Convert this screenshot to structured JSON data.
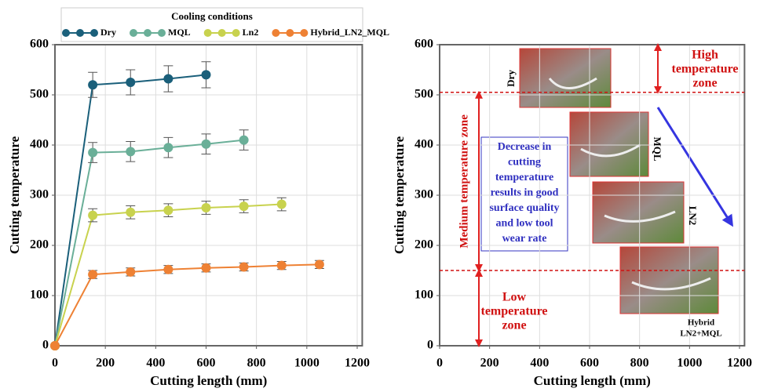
{
  "chart_data": [
    {
      "type": "line",
      "xlabel": "Cutting length (mm)",
      "ylabel": "Cutting temperature",
      "legend_title": "Cooling conditions",
      "xlim": [
        0,
        1220
      ],
      "ylim": [
        0,
        600
      ],
      "xticks": [
        0,
        200,
        400,
        600,
        800,
        1000,
        1200
      ],
      "yticks": [
        0,
        100,
        200,
        300,
        400,
        500,
        600
      ],
      "grid": true,
      "series": [
        {
          "name": "Dry",
          "color": "#1a5f7a",
          "x": [
            0,
            150,
            300,
            450,
            600
          ],
          "values": [
            0,
            520,
            525,
            532,
            540
          ],
          "errors": [
            null,
            25,
            25,
            26,
            26
          ]
        },
        {
          "name": "MQL",
          "color": "#6aaf98",
          "x": [
            0,
            150,
            300,
            450,
            600,
            750
          ],
          "values": [
            0,
            385,
            387,
            395,
            402,
            410
          ],
          "errors": [
            null,
            20,
            20,
            20,
            20,
            20
          ]
        },
        {
          "name": "Ln2",
          "color": "#c8d24e",
          "x": [
            0,
            150,
            300,
            450,
            600,
            750,
            900
          ],
          "values": [
            0,
            260,
            266,
            270,
            275,
            278,
            282
          ],
          "errors": [
            null,
            13,
            13,
            13,
            13,
            13,
            13
          ]
        },
        {
          "name": "Hybrid_LN2_MQL",
          "color": "#ee8134",
          "x": [
            0,
            150,
            300,
            450,
            600,
            750,
            900,
            1050
          ],
          "values": [
            0,
            142,
            147,
            152,
            155,
            157,
            160,
            162
          ],
          "errors": [
            null,
            8,
            8,
            8,
            8,
            8,
            8,
            8
          ]
        }
      ]
    },
    {
      "type": "line",
      "xlabel": "Cutting length (mm)",
      "ylabel": "Cutting temperature",
      "xlim": [
        0,
        1220
      ],
      "ylim": [
        0,
        600
      ],
      "xticks": [
        0,
        200,
        400,
        600,
        800,
        1000,
        1200
      ],
      "yticks": [
        0,
        100,
        200,
        300,
        400,
        500,
        600
      ],
      "grid": true,
      "series": [],
      "reference_lines": [
        505,
        150
      ],
      "high_zone": [
        "High",
        "temperature",
        "zone"
      ],
      "medium_zone": "Medium temperature zone",
      "low_zone": [
        "Low",
        "temperature",
        "zone"
      ],
      "note": [
        "Decrease in",
        "cutting",
        "temperature",
        "results in good",
        "surface quality",
        "and low tool",
        "wear rate"
      ],
      "photo_labels": {
        "dry": "Dry",
        "mql": "MQL",
        "ln2": "LN2",
        "hybrid": [
          "Hybrid",
          "LN2+MQL"
        ]
      }
    }
  ]
}
